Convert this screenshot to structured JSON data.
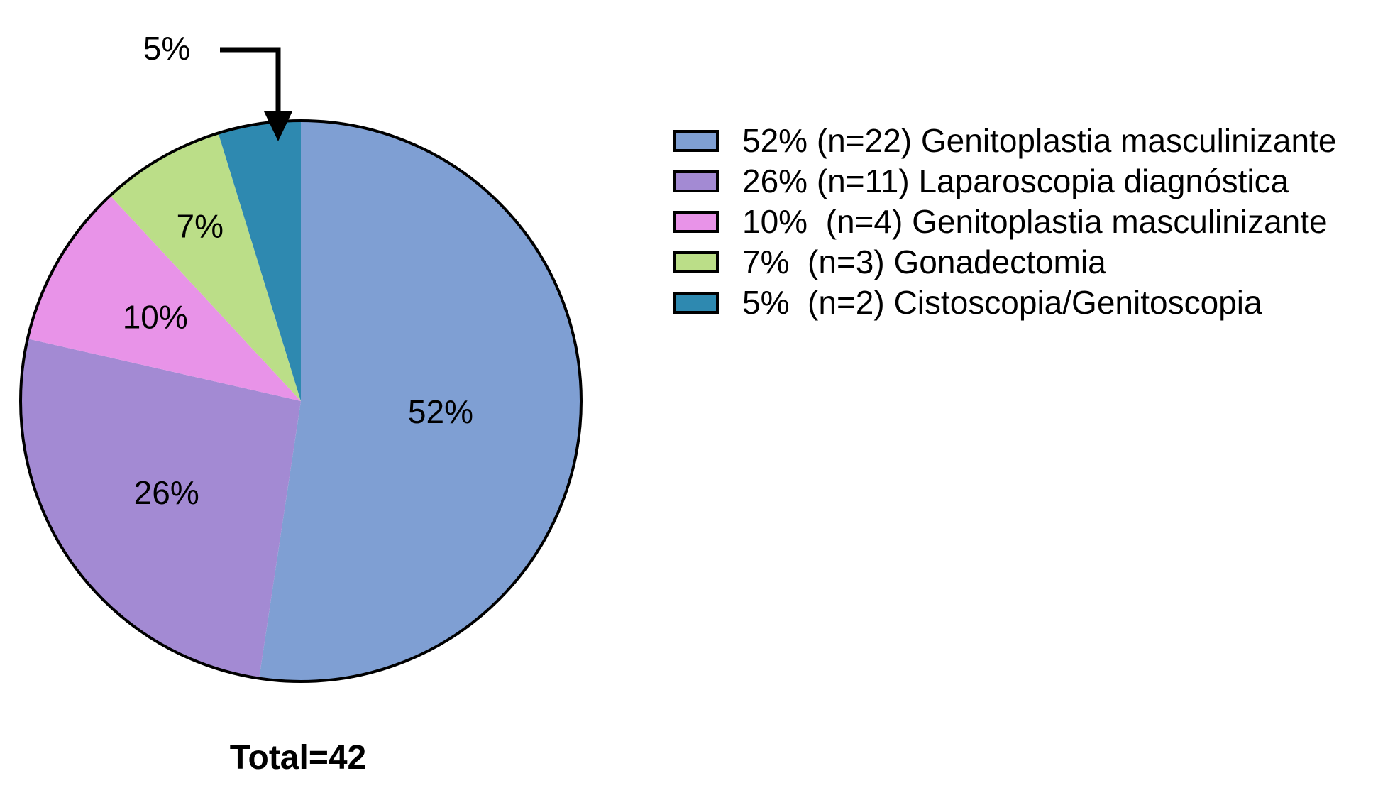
{
  "chart_data": {
    "type": "pie",
    "title": "",
    "total_label": "Total=42",
    "slices": [
      {
        "value": 22,
        "percent_label": "52%",
        "legend_label": "52% (n=22) Genitoplastia masculinizante",
        "color": "#7F9FD3"
      },
      {
        "value": 11,
        "percent_label": "26%",
        "legend_label": "26% (n=11) Laparoscopia diagnóstica",
        "color": "#A38AD3"
      },
      {
        "value": 4,
        "percent_label": "10%",
        "legend_label": "10%  (n=4) Genitoplastia masculinizante",
        "color": "#E893E8"
      },
      {
        "value": 3,
        "percent_label": "7%",
        "legend_label": "7%  (n=3) Gonadectomia",
        "color": "#BBDE88"
      },
      {
        "value": 2,
        "percent_label": "5%",
        "legend_label": "5%  (n=2) Cistoscopia/Genitoscopia",
        "color": "#2E89B0"
      }
    ],
    "callout_slice_label": "5%",
    "legend_position": "right",
    "border_color": "#000000"
  }
}
